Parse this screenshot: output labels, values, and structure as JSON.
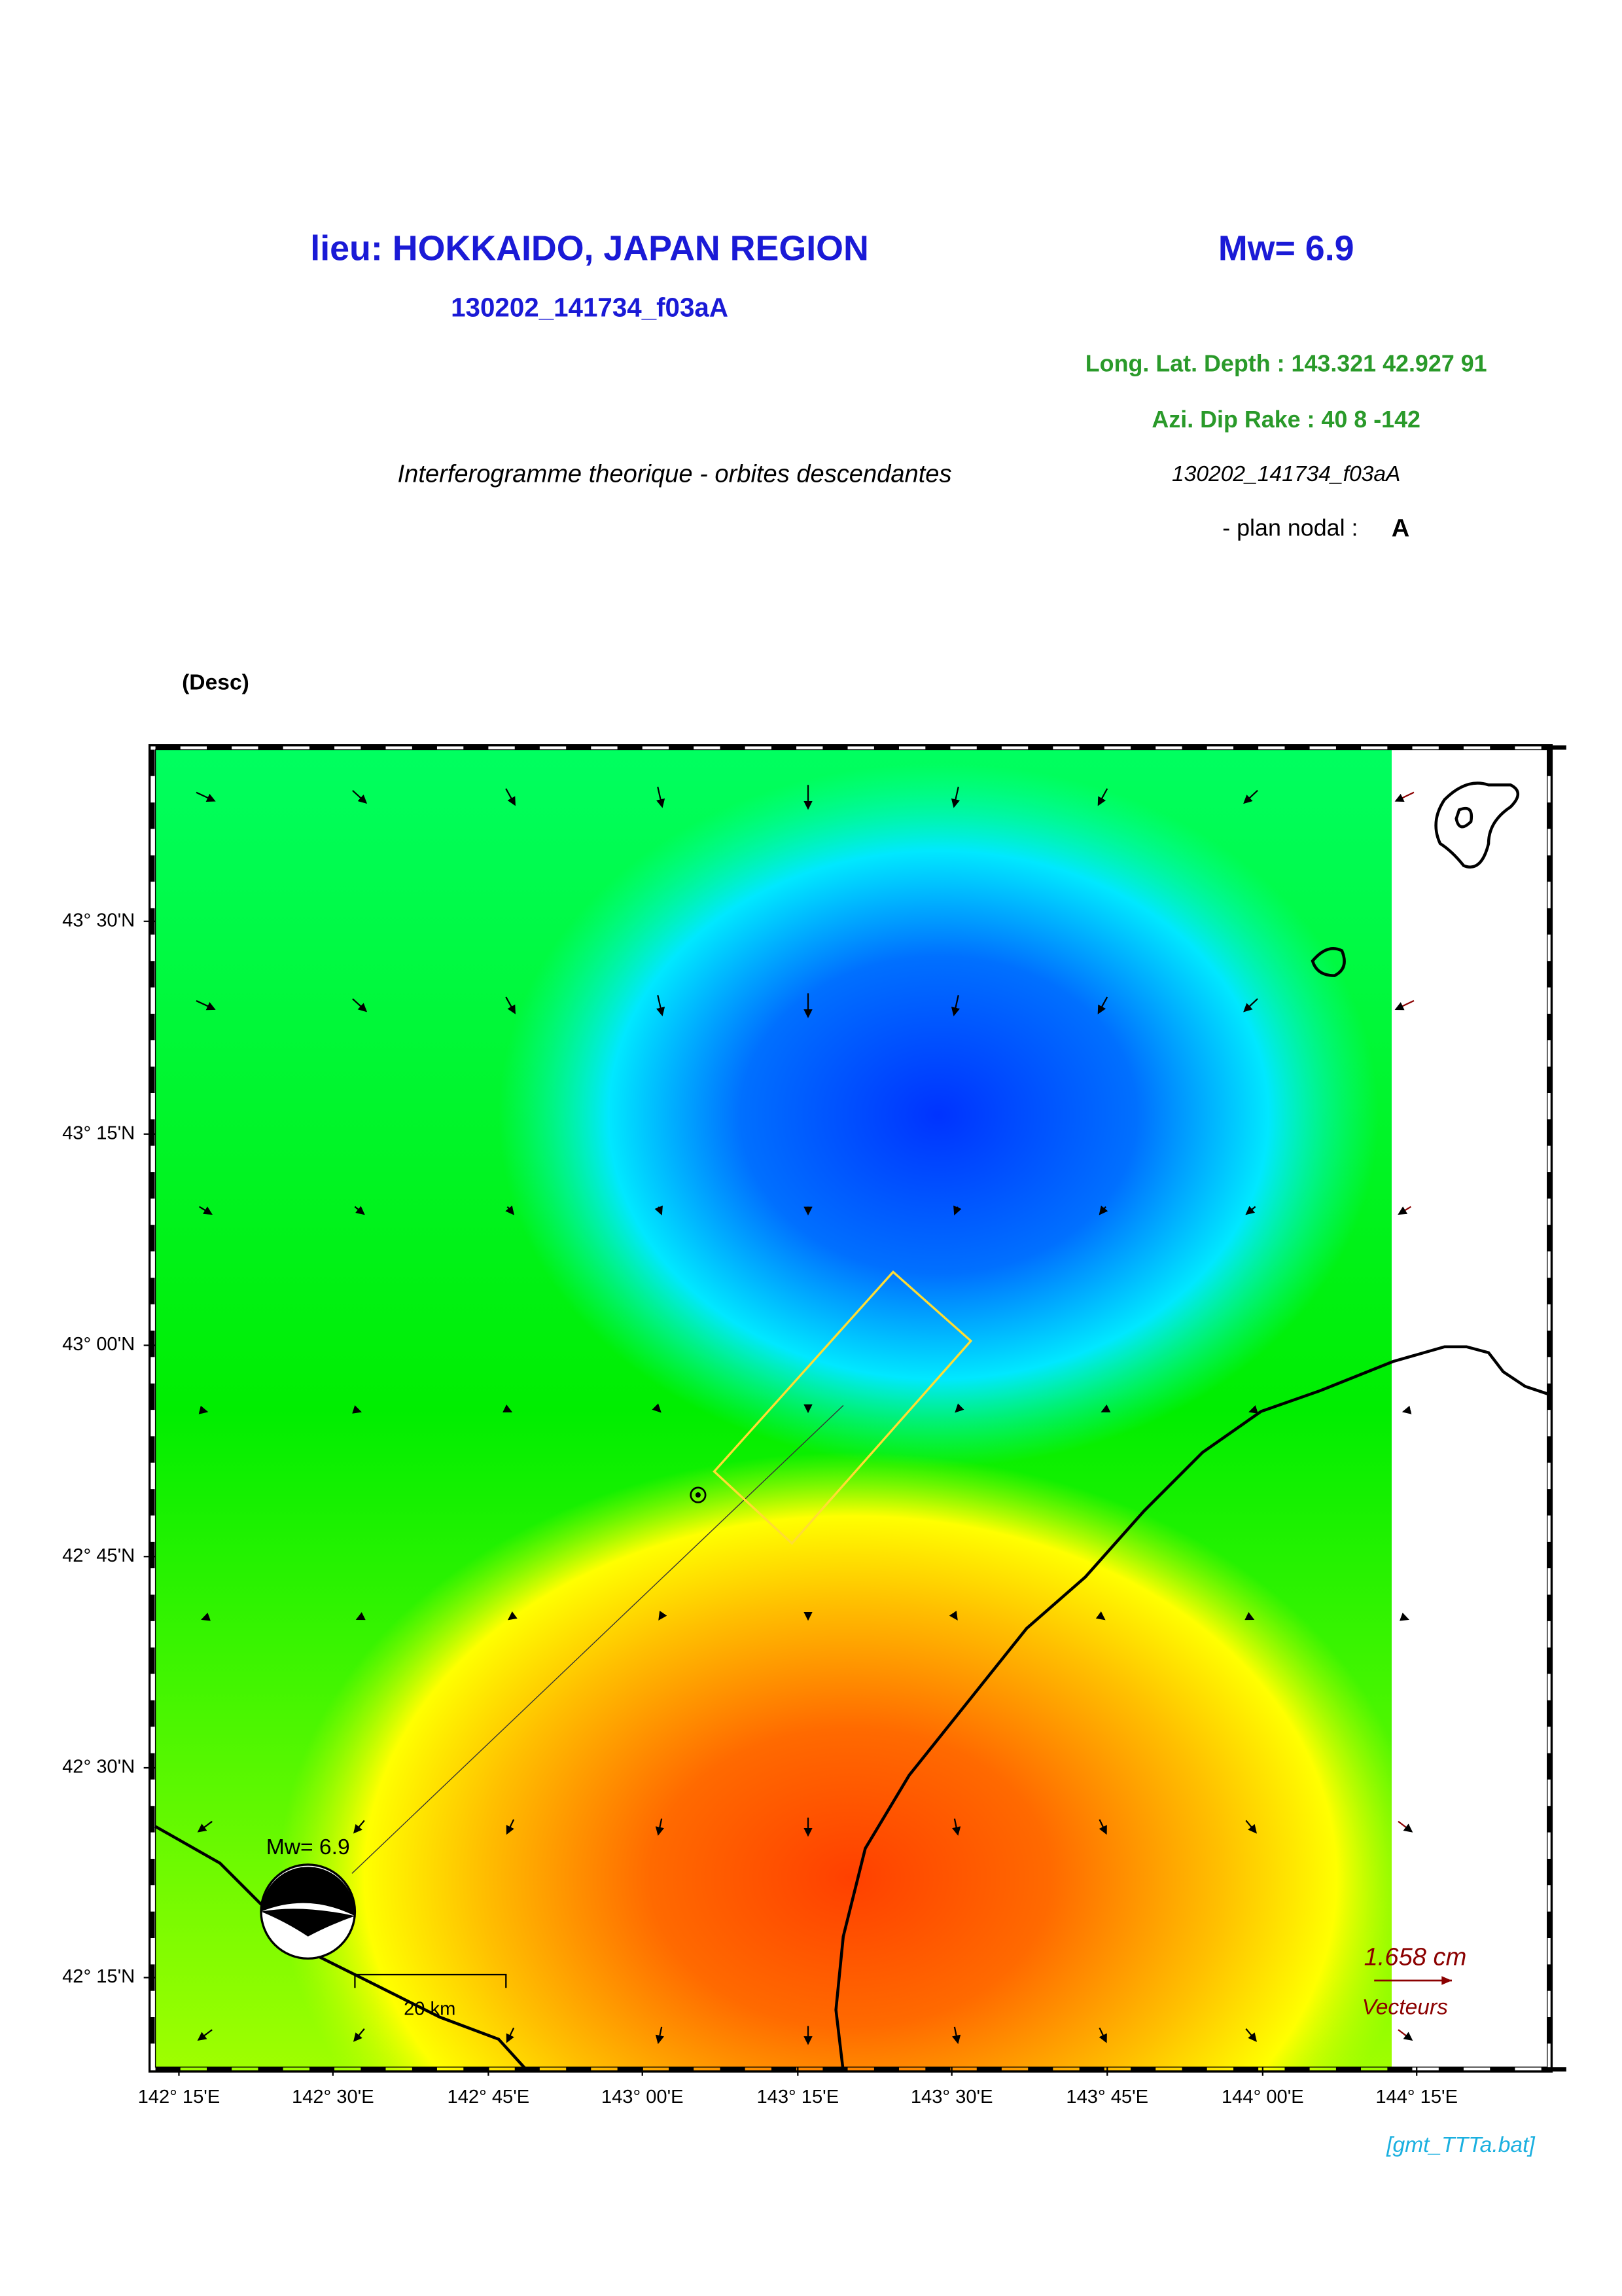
{
  "header": {
    "title": "lieu: HOKKAIDO, JAPAN REGION",
    "magnitude": "Mw= 6.9",
    "event_id": "130202_141734_f03aA",
    "location": "Long. Lat. Depth : 143.321 42.927 91",
    "mechanism": "Azi.  Dip   Rake :  40 8 -142",
    "subtitle": "Interferogramme theorique - orbites descendantes",
    "event_id_2": "130202_141734_f03aA",
    "plan_label": "- plan nodal :",
    "plan": "A"
  },
  "map": {
    "panel_label": "(Desc)",
    "y_ticks": [
      "43° 30'N",
      "43° 15'N",
      "43° 00'N",
      "42° 45'N",
      "42° 30'N",
      "42° 15'N"
    ],
    "x_ticks": [
      "142° 15'E",
      "142° 30'E",
      "142° 45'E",
      "143° 00'E",
      "143° 15'E",
      "143° 30'E",
      "143° 45'E",
      "144° 00'E",
      "144° 15'E"
    ],
    "beachball_label": "Mw= 6.9",
    "scale_bar": "20 km",
    "vector_scale": "1.658  cm",
    "vector_label": "Vecteurs"
  },
  "footer": "[gmt_TTTa.bat]"
}
